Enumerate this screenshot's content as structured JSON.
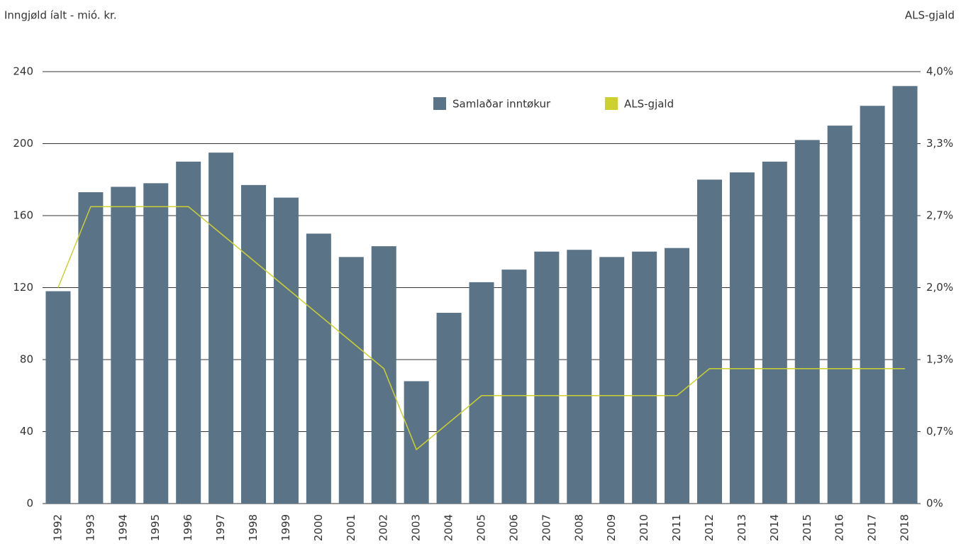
{
  "chart_data": {
    "type": "bar",
    "y_label": "Inngjøld íalt - mió. kr.",
    "y2_label": "ALS-gjald",
    "categories": [
      "1992",
      "1993",
      "1994",
      "1995",
      "1996",
      "1997",
      "1998",
      "1999",
      "2000",
      "2001",
      "2002",
      "2003",
      "2004",
      "2005",
      "2006",
      "2007",
      "2008",
      "2009",
      "2010",
      "2011",
      "2012",
      "2013",
      "2014",
      "2015",
      "2016",
      "2017",
      "2018"
    ],
    "series": [
      {
        "name": "Samlaðar inntøkur",
        "type": "bar",
        "color": "#5a7387",
        "axis": "y",
        "values": [
          118,
          173,
          176,
          178,
          190,
          195,
          177,
          170,
          150,
          137,
          143,
          68,
          106,
          123,
          130,
          140,
          141,
          137,
          140,
          142,
          180,
          184,
          190,
          202,
          210,
          221,
          232
        ]
      },
      {
        "name": "ALS-gjald",
        "type": "line",
        "color": "#cdd12f",
        "axis": "y2",
        "values": [
          2.0,
          2.75,
          2.75,
          2.75,
          2.75,
          2.5,
          2.25,
          2.0,
          1.75,
          1.5,
          1.25,
          0.5,
          0.75,
          1.0,
          1.0,
          1.0,
          1.0,
          1.0,
          1.0,
          1.0,
          1.25,
          1.25,
          1.25,
          1.25,
          1.25,
          1.25,
          1.25
        ]
      }
    ],
    "ylim": [
      0,
      240
    ],
    "yticks": [
      0,
      40,
      80,
      120,
      160,
      200,
      240
    ],
    "y2lim": [
      0,
      4
    ],
    "y2ticks": [
      {
        "value": 0,
        "label": "0%"
      },
      {
        "value": 0.6667,
        "label": "0,7%"
      },
      {
        "value": 1.3333,
        "label": "1,3%"
      },
      {
        "value": 2,
        "label": "2,0%"
      },
      {
        "value": 2.6667,
        "label": "2,7%"
      },
      {
        "value": 3.3333,
        "label": "3,3%"
      },
      {
        "value": 4,
        "label": "4,0%"
      }
    ],
    "grid": true
  }
}
